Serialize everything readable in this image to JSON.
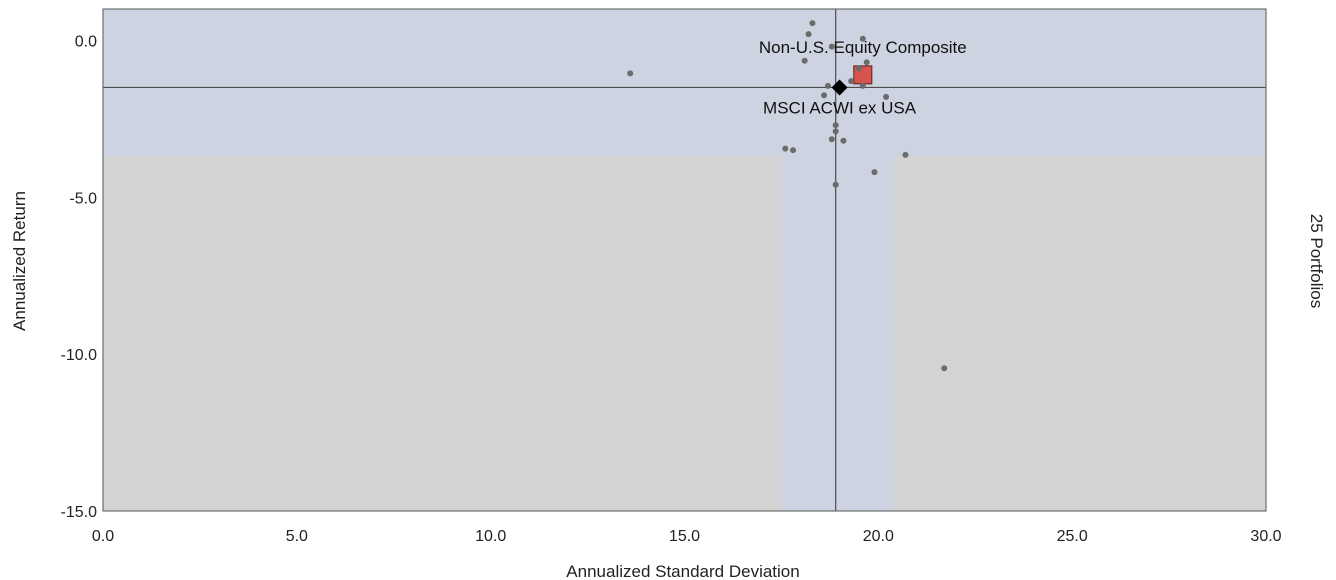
{
  "chart_data": {
    "type": "scatter",
    "title": "",
    "xlabel": "Annualized Standard Deviation",
    "ylabel": "Annualized Return",
    "right_label": "25 Portfolios",
    "xlim": [
      0,
      30
    ],
    "ylim": [
      -15,
      1
    ],
    "x_ticks": [
      0,
      5,
      10,
      15,
      20,
      25,
      30
    ],
    "x_tick_labels": [
      "0.0",
      "5.0",
      "10.0",
      "15.0",
      "20.0",
      "25.0",
      "30.0"
    ],
    "y_ticks": [
      0,
      -5,
      -10,
      -15
    ],
    "y_tick_labels": [
      "0.0",
      "-5.0",
      "-10.0",
      "-15.0"
    ],
    "grid": false,
    "bands": {
      "return_band": [
        -3.7,
        1
      ],
      "std_dev_band": [
        17.5,
        20.4
      ]
    },
    "reference_lines": {
      "x": 18.9,
      "y": -1.5
    },
    "colors": {
      "band": "#cdd3e0",
      "background": "#d4d4d4",
      "peer_point": "#6b6b6b",
      "composite": "#d9534f",
      "benchmark": "#000000",
      "reference_line": "#4d4d4d"
    },
    "series": [
      {
        "name": "Non-U.S. Equity Composite",
        "marker": "square",
        "points": [
          {
            "x": 19.6,
            "y": -1.1
          }
        ]
      },
      {
        "name": "MSCI ACWI ex USA",
        "marker": "diamond",
        "points": [
          {
            "x": 19.0,
            "y": -1.5
          }
        ]
      },
      {
        "name": "",
        "marker": "dot",
        "points": [
          {
            "x": 13.6,
            "y": -1.05
          },
          {
            "x": 18.3,
            "y": 0.55
          },
          {
            "x": 18.2,
            "y": 0.2
          },
          {
            "x": 18.1,
            "y": -0.65
          },
          {
            "x": 18.8,
            "y": -0.2
          },
          {
            "x": 19.6,
            "y": 0.05
          },
          {
            "x": 19.7,
            "y": -0.7
          },
          {
            "x": 19.5,
            "y": -0.9
          },
          {
            "x": 18.7,
            "y": -1.45
          },
          {
            "x": 18.6,
            "y": -1.75
          },
          {
            "x": 19.3,
            "y": -1.3
          },
          {
            "x": 19.6,
            "y": -1.45
          },
          {
            "x": 20.2,
            "y": -1.8
          },
          {
            "x": 18.9,
            "y": -2.7
          },
          {
            "x": 18.9,
            "y": -2.9
          },
          {
            "x": 18.8,
            "y": -3.15
          },
          {
            "x": 19.1,
            "y": -3.2
          },
          {
            "x": 17.6,
            "y": -3.45
          },
          {
            "x": 17.8,
            "y": -3.5
          },
          {
            "x": 20.7,
            "y": -3.65
          },
          {
            "x": 19.9,
            "y": -4.2
          },
          {
            "x": 18.9,
            "y": -4.6
          },
          {
            "x": 21.7,
            "y": -10.45
          }
        ]
      }
    ]
  }
}
